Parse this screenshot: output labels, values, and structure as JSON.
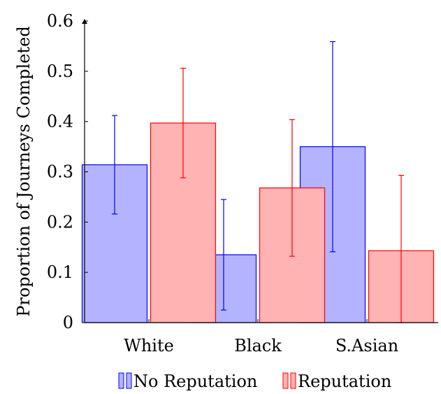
{
  "chart_data": {
    "type": "bar",
    "title": "",
    "xlabel": "",
    "ylabel": "Proportion of Journeys Completed",
    "ylim": [
      0,
      0.6
    ],
    "yticks": [
      0,
      0.1,
      0.2,
      0.3,
      0.4,
      0.5,
      0.6
    ],
    "ytick_labels": [
      "0",
      "0.1",
      "0.2",
      "0.3",
      "0.4",
      "0.5",
      "0.6"
    ],
    "categories": [
      "White",
      "Black",
      "S.Asian"
    ],
    "series": [
      {
        "name": "No Reputation",
        "color": "#0000ff",
        "fill": "#b3b3ff",
        "values": [
          0.314,
          0.135,
          0.35
        ],
        "error_low": [
          0.216,
          0.025,
          0.141
        ],
        "error_high": [
          0.412,
          0.245,
          0.559
        ]
      },
      {
        "name": "Reputation",
        "color": "#ff0000",
        "fill": "#ffb3b3",
        "values": [
          0.397,
          0.268,
          0.143
        ],
        "error_low": [
          0.288,
          0.132,
          0.0
        ],
        "error_high": [
          0.506,
          0.404,
          0.293
        ]
      }
    ],
    "legend": "bottom",
    "grid": false
  }
}
